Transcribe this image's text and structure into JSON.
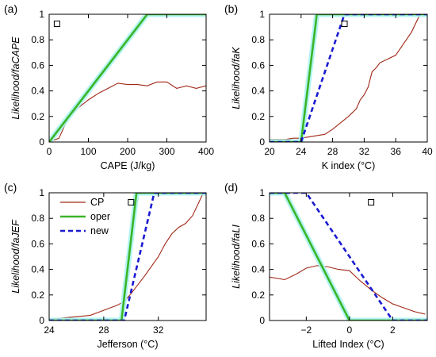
{
  "colors": {
    "cp": "#a02818",
    "oper": "#3cb428",
    "new": "#1a1ad0",
    "glow": "#a8f4f0"
  },
  "legend": {
    "cp": "CP",
    "oper": "oper",
    "new": "new"
  },
  "chart_data": [
    {
      "id": "a",
      "type": "line",
      "panel_label": "(a)",
      "xlabel": "CAPE (J/kg)",
      "ylabel": "Likelihood/faCAPE",
      "xlim": [
        0,
        400
      ],
      "ylim": [
        0,
        1
      ],
      "xticks": [
        0,
        100,
        200,
        300,
        400
      ],
      "yticks": [
        0,
        0.2,
        0.4,
        0.6,
        0.8,
        1
      ],
      "marker_x": 20,
      "series": [
        {
          "key": "cp",
          "x": [
            0,
            25,
            50,
            75,
            100,
            125,
            150,
            175,
            200,
            225,
            250,
            275,
            300,
            325,
            350,
            375,
            400
          ],
          "y": [
            0,
            0.03,
            0.2,
            0.27,
            0.33,
            0.38,
            0.42,
            0.46,
            0.45,
            0.45,
            0.44,
            0.47,
            0.47,
            0.42,
            0.44,
            0.42,
            0.44
          ]
        },
        {
          "key": "oper",
          "x": [
            0,
            250,
            400
          ],
          "y": [
            0,
            1,
            1
          ]
        }
      ]
    },
    {
      "id": "b",
      "type": "line",
      "panel_label": "(b)",
      "xlabel": "K index (°C)",
      "ylabel": "Likelihood/faK",
      "xlim": [
        20,
        40
      ],
      "ylim": [
        0,
        1
      ],
      "xticks": [
        20,
        24,
        28,
        32,
        36,
        40
      ],
      "yticks": [
        0,
        0.2,
        0.4,
        0.6,
        0.8,
        1
      ],
      "marker_x": 29.5,
      "series": [
        {
          "key": "cp",
          "x": [
            20,
            21,
            22,
            23,
            24,
            25,
            26,
            27,
            28,
            29,
            30,
            31,
            31.5,
            32,
            32.5,
            33,
            33.5,
            34,
            35,
            36,
            37,
            38,
            39
          ],
          "y": [
            0.02,
            0.02,
            0.02,
            0.03,
            0.03,
            0.04,
            0.05,
            0.06,
            0.1,
            0.15,
            0.2,
            0.26,
            0.33,
            0.37,
            0.43,
            0.55,
            0.58,
            0.62,
            0.65,
            0.68,
            0.77,
            0.86,
            0.99
          ]
        },
        {
          "key": "oper",
          "x": [
            20,
            24,
            26,
            40
          ],
          "y": [
            0,
            0,
            1,
            1
          ]
        },
        {
          "key": "new",
          "x": [
            20,
            24,
            29.5,
            40
          ],
          "y": [
            0,
            0,
            1,
            1
          ]
        }
      ]
    },
    {
      "id": "c",
      "type": "line",
      "panel_label": "(c)",
      "xlabel": "Jefferson (°C)",
      "ylabel": "Likelihood/faJEF",
      "xlim": [
        24,
        35.5
      ],
      "ylim": [
        0,
        1
      ],
      "xticks": [
        24,
        28,
        32
      ],
      "yticks": [
        0,
        0.2,
        0.4,
        0.6,
        0.8,
        1
      ],
      "marker_x": 30,
      "series": [
        {
          "key": "cp",
          "x": [
            24,
            25,
            26,
            27,
            27.5,
            28,
            28.5,
            29,
            29.5,
            30,
            31,
            32,
            32.5,
            33,
            33.5,
            34,
            34.5,
            35.3
          ],
          "y": [
            0.01,
            0.02,
            0.03,
            0.04,
            0.06,
            0.08,
            0.1,
            0.12,
            0.15,
            0.21,
            0.35,
            0.5,
            0.6,
            0.68,
            0.73,
            0.76,
            0.82,
            1.0
          ]
        },
        {
          "key": "oper",
          "x": [
            24,
            29.3,
            30.4,
            35.5
          ],
          "y": [
            0,
            0,
            1,
            1
          ]
        },
        {
          "key": "new",
          "x": [
            24,
            29.5,
            31.7,
            35.5
          ],
          "y": [
            0,
            0,
            1,
            1
          ]
        }
      ]
    },
    {
      "id": "d",
      "type": "line",
      "panel_label": "(d)",
      "xlabel": "Lifted Index (°C)",
      "ylabel": "Likelihood/faLI",
      "xlim": [
        -3.7,
        3.6
      ],
      "ylim": [
        0,
        1
      ],
      "xticks": [
        -2,
        0,
        2
      ],
      "yticks": [
        0,
        0.2,
        0.4,
        0.6,
        0.8,
        1
      ],
      "marker_x": 1,
      "series": [
        {
          "key": "cp",
          "x": [
            -3.7,
            -3,
            -2.5,
            -2,
            -1.5,
            -1,
            -0.5,
            0,
            0.5,
            1,
            1.5,
            2,
            2.5,
            3,
            3.5
          ],
          "y": [
            0.34,
            0.32,
            0.36,
            0.41,
            0.43,
            0.42,
            0.4,
            0.39,
            0.31,
            0.24,
            0.18,
            0.13,
            0.1,
            0.07,
            0.05
          ]
        },
        {
          "key": "oper",
          "x": [
            -3.7,
            -3,
            0,
            3.6
          ],
          "y": [
            1,
            1,
            0,
            0
          ]
        },
        {
          "key": "new",
          "x": [
            -3.7,
            -2,
            2,
            3.6
          ],
          "y": [
            1,
            1,
            0,
            0
          ]
        }
      ]
    }
  ]
}
